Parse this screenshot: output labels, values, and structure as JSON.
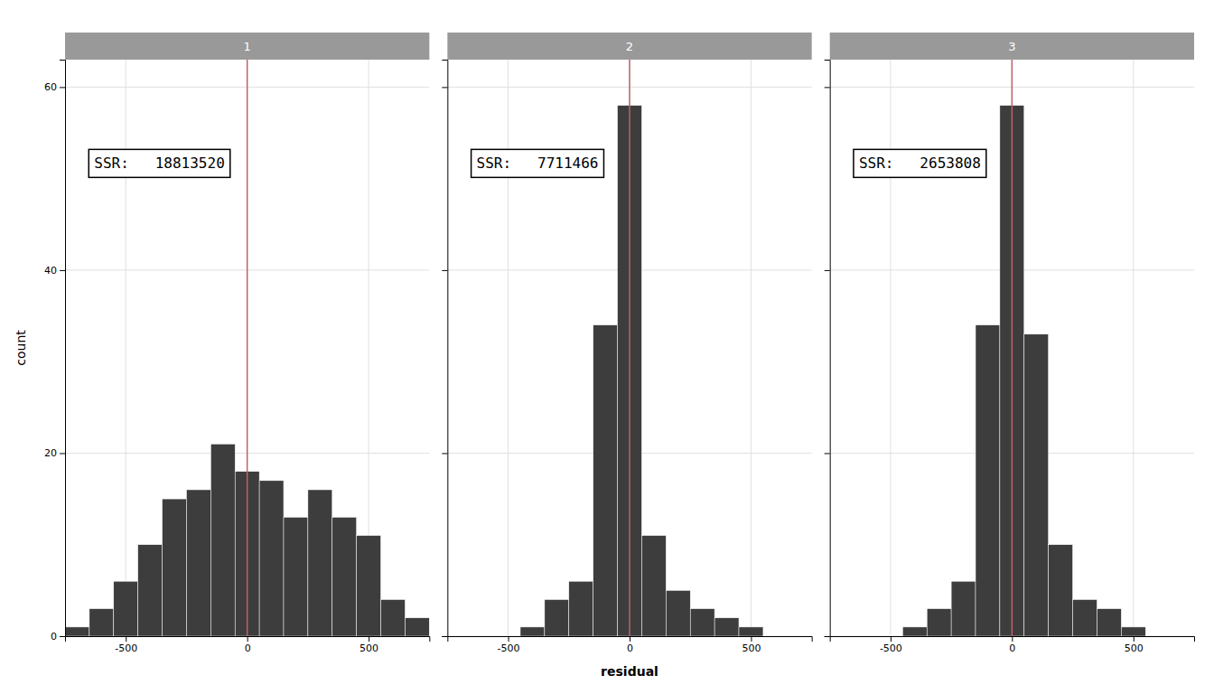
{
  "chart_data": [
    {
      "type": "histogram",
      "title": "1",
      "annotation": "SSR:   18813520",
      "ylabel": "count",
      "bins": [
        -750,
        -650,
        -550,
        -450,
        -350,
        -250,
        -150,
        -50,
        50,
        150,
        250,
        350,
        450,
        550,
        650,
        750
      ],
      "values": [
        1,
        3,
        6,
        10,
        15,
        16,
        21,
        18,
        17,
        13,
        16,
        13,
        11,
        4,
        2
      ],
      "color": "#3d3d3d",
      "reference_lines": [
        {
          "x": 0,
          "color": "#c0616a"
        }
      ],
      "xlim": [
        -750,
        750
      ],
      "ylim": [
        0,
        63
      ],
      "xticks": [
        -500,
        0,
        500
      ],
      "yticks": [
        0,
        20,
        40,
        60
      ],
      "grid": true
    },
    {
      "type": "histogram",
      "title": "2",
      "annotation": "SSR:   7711466",
      "xlabel": "residual",
      "bins": [
        -750,
        -650,
        -550,
        -450,
        -350,
        -250,
        -150,
        -50,
        50,
        150,
        250,
        350,
        450,
        550,
        650,
        750
      ],
      "values": [
        0,
        0,
        0,
        1,
        4,
        6,
        34,
        58,
        11,
        5,
        3,
        2,
        1,
        0,
        0
      ],
      "color": "#3d3d3d",
      "reference_lines": [
        {
          "x": 0,
          "color": "#c0616a"
        }
      ],
      "xlim": [
        -750,
        750
      ],
      "ylim": [
        0,
        63
      ],
      "xticks": [
        -500,
        0,
        500
      ],
      "yticks": [
        0,
        20,
        40,
        60
      ],
      "grid": true,
      "tick_labels": "x"
    },
    {
      "type": "histogram",
      "title": "3",
      "annotation": "SSR:   2653808",
      "bins": [
        -750,
        -650,
        -550,
        -450,
        -350,
        -250,
        -150,
        -50,
        50,
        150,
        250,
        350,
        450,
        550,
        650,
        750
      ],
      "values": [
        0,
        0,
        0,
        1,
        3,
        6,
        34,
        58,
        33,
        10,
        4,
        3,
        1,
        0,
        0
      ],
      "color": "#3d3d3d",
      "reference_lines": [
        {
          "x": 0,
          "color": "#c0616a"
        }
      ],
      "xlim": [
        -750,
        750
      ],
      "ylim": [
        0,
        63
      ],
      "xticks": [
        -500,
        0,
        500
      ],
      "yticks": [
        0,
        20,
        40,
        60
      ],
      "grid": true,
      "tick_labels": "x"
    }
  ]
}
